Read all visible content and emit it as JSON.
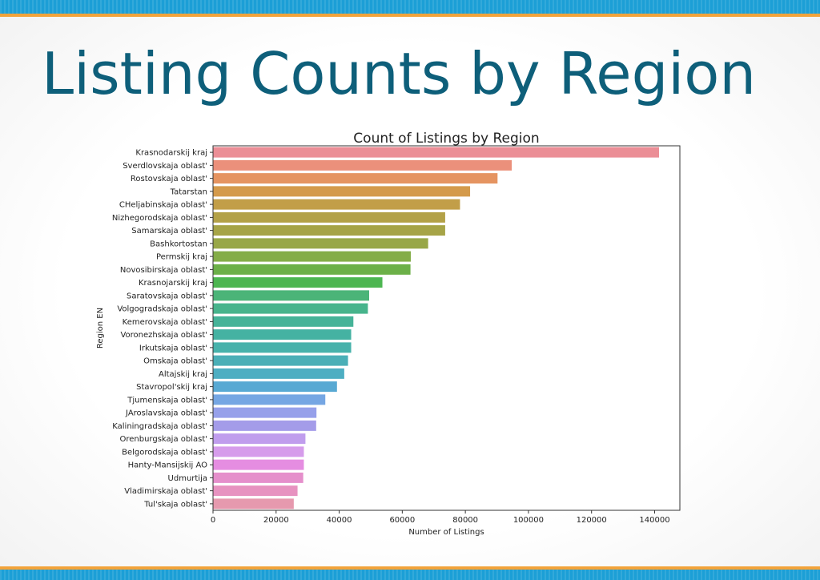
{
  "slide": {
    "title": "Listing Counts by Region",
    "colors": {
      "title": "#0e5f7a",
      "band": "#1c9fd6",
      "band_stripe": "#f2a33a"
    }
  },
  "chart_data": {
    "type": "bar",
    "orientation": "horizontal",
    "title": "Count of Listings by Region",
    "xlabel": "Number of Listings",
    "ylabel": "Region EN",
    "xlim": [
      0,
      148000
    ],
    "xticks": [
      0,
      20000,
      40000,
      60000,
      80000,
      100000,
      120000,
      140000
    ],
    "grid": false,
    "legend": "none",
    "categories": [
      "Krasnodarskij kraj",
      "Sverdlovskaja oblast'",
      "Rostovskaja oblast'",
      "Tatarstan",
      "CHeljabinskaja oblast'",
      "Nizhegorodskaja oblast'",
      "Samarskaja oblast'",
      "Bashkortostan",
      "Permskij kraj",
      "Novosibirskaja oblast'",
      "Krasnojarskij kraj",
      "Saratovskaja oblast'",
      "Volgogradskaja oblast'",
      "Kemerovskaja oblast'",
      "Voronezhskaja oblast'",
      "Irkutskaja oblast'",
      "Omskaja oblast'",
      "Altajskij kraj",
      "Stavropol'skij kraj",
      "Tjumenskaja oblast'",
      "JAroslavskaja oblast'",
      "Kaliningradskaja oblast'",
      "Orenburgskaja oblast'",
      "Belgorodskaja oblast'",
      "Hanty-Mansijskij AO",
      "Udmurtija",
      "Vladimirskaja oblast'",
      "Tul'skaja oblast'"
    ],
    "values": [
      141400,
      94700,
      90200,
      81500,
      78300,
      73600,
      73600,
      68200,
      62700,
      62600,
      53700,
      49500,
      49100,
      44500,
      43800,
      43800,
      42800,
      41600,
      39300,
      35600,
      32800,
      32700,
      29300,
      28800,
      28800,
      28600,
      26800,
      25600
    ],
    "colors": [
      "#eb8e96",
      "#eb907b",
      "#e59461",
      "#d49a4b",
      "#c29e48",
      "#b3a147",
      "#a6a447",
      "#98a747",
      "#84ad48",
      "#6cb048",
      "#4db651",
      "#4bb478",
      "#47b48c",
      "#45b398",
      "#45b2a2",
      "#47b2ab",
      "#4aafb7",
      "#4daec2",
      "#58a9d3",
      "#75a6e3",
      "#96a0ea",
      "#a49ce9",
      "#c09ded",
      "#d69ceb",
      "#e58de1",
      "#e58fcb",
      "#e792c0",
      "#e699ae"
    ]
  }
}
